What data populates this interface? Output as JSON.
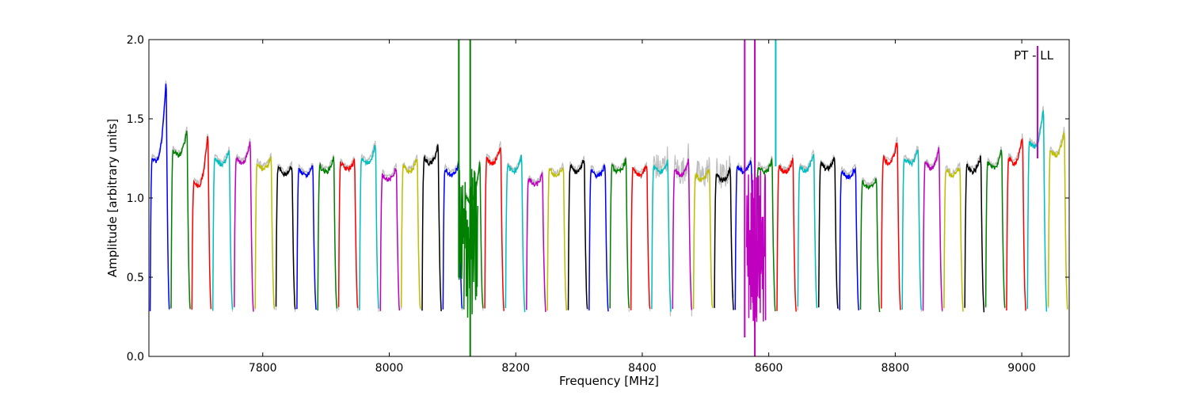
{
  "chart_data": {
    "type": "line",
    "title": "",
    "annotation": "PT - LL",
    "xlabel": "Frequency [MHz]",
    "ylabel": "Amplitude [arbitrary units]",
    "xlim": [
      7620,
      9075
    ],
    "ylim": [
      0.0,
      2.0
    ],
    "xticks": [
      7800,
      8000,
      8200,
      8400,
      8600,
      8800,
      9000
    ],
    "yticks": [
      0.0,
      0.5,
      1.0,
      1.5,
      2.0
    ],
    "xtick_labels": [
      "7800",
      "8000",
      "8200",
      "8400",
      "8600",
      "8800",
      "9000"
    ],
    "ytick_labels": [
      "0.0",
      "0.5",
      "1.0",
      "1.5",
      "2.0"
    ],
    "grid": false,
    "legend": "none",
    "baseline_series": {
      "color": "#bfbfbf",
      "description_label": ""
    },
    "channels": [
      {
        "lo": 7622,
        "hi": 7653,
        "top": 1.25,
        "peak": 1.78,
        "color": "#0000ff"
      },
      {
        "lo": 7655,
        "hi": 7686,
        "top": 1.3,
        "peak": 1.44,
        "color": "#008000"
      },
      {
        "lo": 7688,
        "hi": 7719,
        "top": 1.1,
        "peak": 1.43,
        "color": "#ff0000"
      },
      {
        "lo": 7721,
        "hi": 7753,
        "top": 1.25,
        "peak": 1.3,
        "color": "#00bfbf"
      },
      {
        "lo": 7755,
        "hi": 7786,
        "top": 1.25,
        "peak": 1.37,
        "color": "#bf00bf"
      },
      {
        "lo": 7788,
        "hi": 7819,
        "top": 1.22,
        "peak": 1.26,
        "color": "#bfbf00"
      },
      {
        "lo": 7821,
        "hi": 7852,
        "top": 1.19,
        "peak": 1.21,
        "color": "#000000"
      },
      {
        "lo": 7854,
        "hi": 7885,
        "top": 1.18,
        "peak": 1.2,
        "color": "#0000ff"
      },
      {
        "lo": 7887,
        "hi": 7918,
        "top": 1.2,
        "peak": 1.26,
        "color": "#008000"
      },
      {
        "lo": 7920,
        "hi": 7951,
        "top": 1.22,
        "peak": 1.24,
        "color": "#ff0000"
      },
      {
        "lo": 7953,
        "hi": 7984,
        "top": 1.25,
        "peak": 1.35,
        "color": "#00bfbf"
      },
      {
        "lo": 7986,
        "hi": 8017,
        "top": 1.15,
        "peak": 1.2,
        "color": "#bf00bf"
      },
      {
        "lo": 8019,
        "hi": 8050,
        "top": 1.2,
        "peak": 1.26,
        "color": "#bfbf00"
      },
      {
        "lo": 8052,
        "hi": 8083,
        "top": 1.25,
        "peak": 1.34,
        "color": "#000000"
      },
      {
        "lo": 8085,
        "hi": 8116,
        "top": 1.18,
        "peak": 1.22,
        "color": "#0000ff"
      },
      {
        "lo": 8118,
        "hi": 8149,
        "top": 1.0,
        "peak": 1.24,
        "color": "#008000"
      },
      {
        "lo": 8151,
        "hi": 8182,
        "top": 1.25,
        "peak": 1.34,
        "color": "#ff0000"
      },
      {
        "lo": 8184,
        "hi": 8215,
        "top": 1.2,
        "peak": 1.27,
        "color": "#00bfbf"
      },
      {
        "lo": 8217,
        "hi": 8248,
        "top": 1.12,
        "peak": 1.15,
        "color": "#bf00bf"
      },
      {
        "lo": 8250,
        "hi": 8281,
        "top": 1.18,
        "peak": 1.2,
        "color": "#bfbf00"
      },
      {
        "lo": 8283,
        "hi": 8314,
        "top": 1.2,
        "peak": 1.25,
        "color": "#000000"
      },
      {
        "lo": 8316,
        "hi": 8347,
        "top": 1.18,
        "peak": 1.21,
        "color": "#0000ff"
      },
      {
        "lo": 8349,
        "hi": 8380,
        "top": 1.2,
        "peak": 1.25,
        "color": "#008000"
      },
      {
        "lo": 8382,
        "hi": 8413,
        "top": 1.18,
        "peak": 1.21,
        "color": "#ff0000"
      },
      {
        "lo": 8415,
        "hi": 8446,
        "top": 1.2,
        "peak": 1.24,
        "color": "#00bfbf"
      },
      {
        "lo": 8448,
        "hi": 8479,
        "top": 1.18,
        "peak": 1.25,
        "color": "#bf00bf"
      },
      {
        "lo": 8481,
        "hi": 8512,
        "top": 1.15,
        "peak": 1.19,
        "color": "#bfbf00"
      },
      {
        "lo": 8514,
        "hi": 8545,
        "top": 1.15,
        "peak": 1.19,
        "color": "#000000"
      },
      {
        "lo": 8547,
        "hi": 8578,
        "top": 1.2,
        "peak": 1.24,
        "color": "#0000ff"
      },
      {
        "lo": 8580,
        "hi": 8611,
        "top": 1.2,
        "peak": 1.24,
        "color": "#008000"
      },
      {
        "lo": 8613,
        "hi": 8644,
        "top": 1.2,
        "peak": 1.25,
        "color": "#ff0000"
      },
      {
        "lo": 8646,
        "hi": 8677,
        "top": 1.2,
        "peak": 1.3,
        "color": "#00bfbf"
      },
      {
        "lo": 8679,
        "hi": 8710,
        "top": 1.22,
        "peak": 1.26,
        "color": "#000000"
      },
      {
        "lo": 8712,
        "hi": 8743,
        "top": 1.17,
        "peak": 1.2,
        "color": "#0000ff"
      },
      {
        "lo": 8745,
        "hi": 8776,
        "top": 1.1,
        "peak": 1.13,
        "color": "#008000"
      },
      {
        "lo": 8778,
        "hi": 8809,
        "top": 1.25,
        "peak": 1.37,
        "color": "#ff0000"
      },
      {
        "lo": 8811,
        "hi": 8842,
        "top": 1.25,
        "peak": 1.32,
        "color": "#00bfbf"
      },
      {
        "lo": 8844,
        "hi": 8875,
        "top": 1.22,
        "peak": 1.32,
        "color": "#bf00bf"
      },
      {
        "lo": 8877,
        "hi": 8908,
        "top": 1.18,
        "peak": 1.2,
        "color": "#bfbf00"
      },
      {
        "lo": 8910,
        "hi": 8941,
        "top": 1.2,
        "peak": 1.27,
        "color": "#000000"
      },
      {
        "lo": 8943,
        "hi": 8974,
        "top": 1.22,
        "peak": 1.32,
        "color": "#008000"
      },
      {
        "lo": 8976,
        "hi": 9007,
        "top": 1.25,
        "peak": 1.39,
        "color": "#ff0000"
      },
      {
        "lo": 9009,
        "hi": 9040,
        "top": 1.35,
        "peak": 1.58,
        "color": "#00bfbf"
      },
      {
        "lo": 9042,
        "hi": 9073,
        "top": 1.3,
        "peak": 1.43,
        "color": "#bfbf00"
      }
    ],
    "spikes": [
      {
        "x": 8110,
        "ymin": 0.5,
        "ymax": 2.0,
        "color": "#008000"
      },
      {
        "x": 8128,
        "ymin": 0.0,
        "ymax": 2.0,
        "color": "#008000"
      },
      {
        "x": 8562,
        "ymin": 0.12,
        "ymax": 2.0,
        "color": "#bf00bf"
      },
      {
        "x": 8578,
        "ymin": 0.0,
        "ymax": 2.0,
        "color": "#bf00bf"
      },
      {
        "x": 8611,
        "ymin": 1.2,
        "ymax": 2.0,
        "color": "#00bfbf"
      },
      {
        "x": 9025,
        "ymin": 1.25,
        "ymax": 1.96,
        "color": "#bf00bf"
      }
    ],
    "noisy_regions": [
      {
        "lo": 8110,
        "hi": 8140,
        "ymin": 0.22,
        "ymax": 1.2,
        "color": "#008000"
      },
      {
        "lo": 8565,
        "hi": 8595,
        "ymin": 0.18,
        "ymax": 1.2,
        "color": "#bf00bf"
      }
    ]
  }
}
